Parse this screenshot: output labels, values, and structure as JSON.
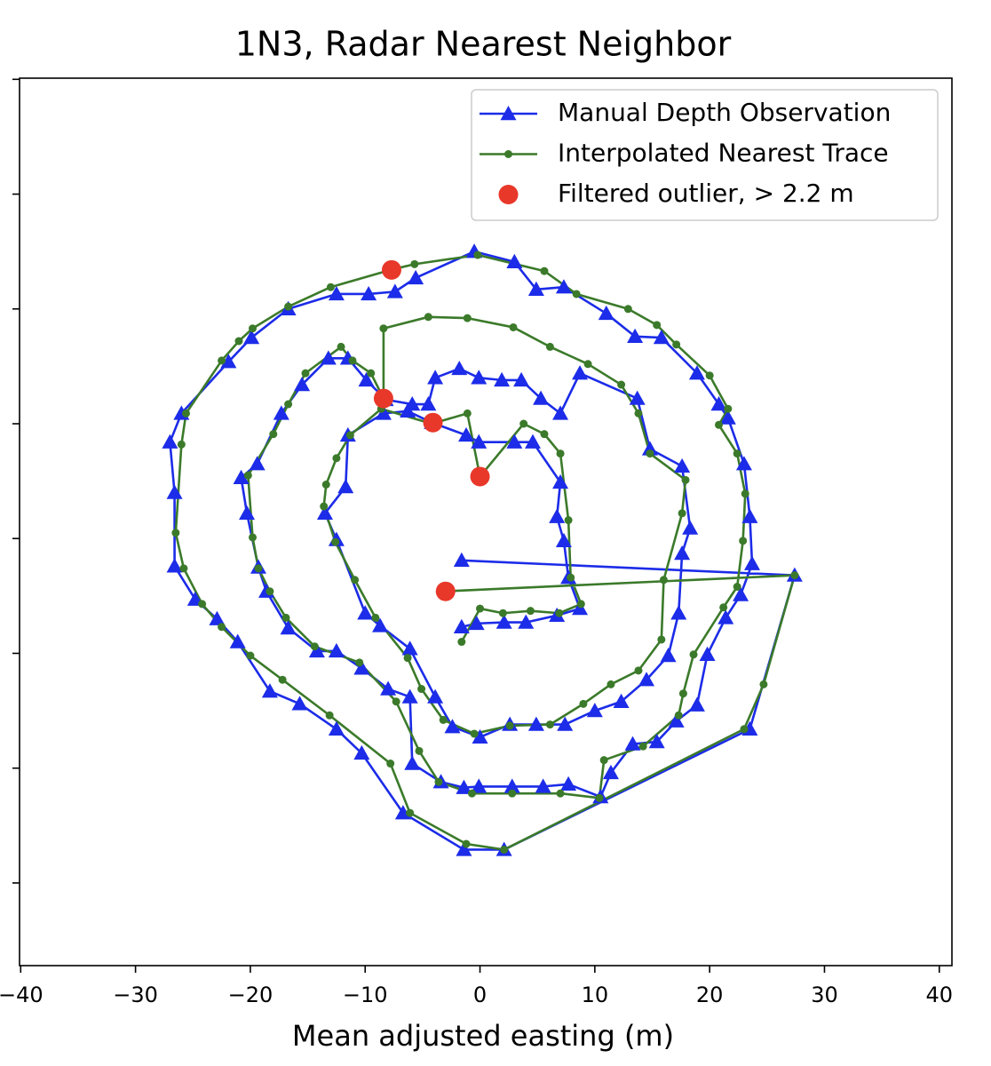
{
  "chart_data": {
    "type": "line",
    "title": "1N3, Radar Nearest Neighbor",
    "x_label": "Mean adjusted easting (m)",
    "legend": "upper right",
    "xlim": [
      -40.1,
      41.1
    ],
    "ylim": [
      -37.2,
      40.1
    ],
    "xticks": [
      {
        "value": -40,
        "label": "−40"
      },
      {
        "value": -30,
        "label": "−30"
      },
      {
        "value": -20,
        "label": "−20"
      },
      {
        "value": -10,
        "label": "−10"
      },
      0,
      10,
      20,
      30,
      40
    ],
    "yticks": [
      -30,
      -20,
      -10,
      0,
      10,
      20,
      30,
      40
    ],
    "series": [
      {
        "name": "Manual Depth Observation",
        "color": "#1c2ce8",
        "marker": "triangle",
        "line": true,
        "x": [
          -1.6,
          27.4,
          23.5,
          2.1,
          -1.4,
          -6.7,
          -10.3,
          -12.5,
          -15.7,
          -18.3,
          -21.1,
          -22.9,
          -24.8,
          -26.6,
          -26.6,
          -27.0,
          -26.0,
          -21.9,
          -19.9,
          -16.7,
          -12.5,
          -9.7,
          -7.4,
          -5.6,
          -0.5,
          3.0,
          4.9,
          7.3,
          11.0,
          13.5,
          15.8,
          18.9,
          20.8,
          21.6,
          23.0,
          23.5,
          23.7,
          22.7,
          21.4,
          19.8,
          18.9,
          17.1,
          15.4,
          13.3,
          11.4,
          10.5,
          7.7,
          5.5,
          2.8,
          -0.1,
          -1.4,
          -3.4,
          -5.9,
          -6.1,
          -8.0,
          -10.3,
          -12.5,
          -14.2,
          -16.7,
          -18.6,
          -19.3,
          -20.3,
          -20.8,
          -19.4,
          -17.3,
          -15.5,
          -13.2,
          -11.5,
          -9.9,
          -8.2,
          -5.9,
          -4.5,
          -3.9,
          -1.8,
          -0.1,
          1.9,
          3.6,
          5.3,
          7.0,
          8.7,
          13.7,
          14.8,
          17.6,
          18.3,
          17.6,
          17.3,
          16.4,
          14.5,
          12.3,
          10.0,
          7.4,
          4.9,
          2.6,
          0,
          -2.4,
          -3.9,
          -6.1,
          -8.7,
          -10.0,
          -12.5,
          -13.5,
          -11.7,
          -11.5,
          -8.4,
          -6.3,
          -4.2,
          -1.2,
          -0.1,
          3.0,
          4.6,
          7.0,
          6.7,
          7.3,
          7.7,
          8.7,
          6.7,
          4.0,
          2.1,
          -0.3,
          -1.6
        ],
        "values": [
          -1.9,
          -3.2,
          -16.6,
          -27.1,
          -27.1,
          -23.9,
          -18.7,
          -16.6,
          -14.4,
          -13.3,
          -9.0,
          -7.0,
          -5.3,
          -2.4,
          4.0,
          8.4,
          10.9,
          15.4,
          17.5,
          20.0,
          21.3,
          21.3,
          21.5,
          22.7,
          25.0,
          24.1,
          21.7,
          21.9,
          19.6,
          17.6,
          17.5,
          14.4,
          11.7,
          10.5,
          6.5,
          1.9,
          -2.2,
          -4.9,
          -6.9,
          -10.1,
          -14.5,
          -15.9,
          -17.7,
          -17.9,
          -20.4,
          -22.5,
          -21.4,
          -21.6,
          -21.6,
          -21.6,
          -21.7,
          -21.2,
          -19.6,
          -13.8,
          -13.1,
          -11.3,
          -9.8,
          -9.8,
          -7.8,
          -4.6,
          -2.5,
          2.2,
          5.3,
          6.5,
          10.9,
          13.4,
          15.7,
          15.7,
          13.8,
          12.1,
          11.7,
          11.7,
          14.0,
          14.8,
          14.0,
          13.8,
          13.8,
          12.2,
          10.9,
          14.4,
          12.2,
          7.8,
          6.3,
          0.9,
          -1.3,
          -6.5,
          -10.2,
          -12.3,
          -14.2,
          -15.0,
          -16.2,
          -16.2,
          -16.2,
          -17.3,
          -16.4,
          -13.8,
          -9.6,
          -7.6,
          -6.5,
          -0.1,
          2.2,
          4.5,
          9.0,
          10.9,
          11.1,
          10.1,
          9.0,
          8.4,
          8.4,
          8.4,
          4.9,
          1.9,
          -0.2,
          -3.4,
          -6.1,
          -6.7,
          -7.3,
          -7.3,
          -7.4,
          -7.7
        ]
      },
      {
        "name": "Interpolated Nearest Trace",
        "color": "#3b7a2a",
        "marker": "circle",
        "line": true,
        "x": [
          -3.2,
          27.4,
          24.7,
          23.0,
          2.1,
          -1.2,
          -6.1,
          -7.8,
          -13.1,
          -17.2,
          -20.0,
          -22.5,
          -24.2,
          -25.8,
          -26.5,
          -26.0,
          -25.6,
          -22.5,
          -21.0,
          -19.8,
          -16.7,
          -13.0,
          -7.8,
          -5.7,
          -0.2,
          5.6,
          8.4,
          12.9,
          15.4,
          17.1,
          20.0,
          21.6,
          20.8,
          22.4,
          23.1,
          22.9,
          22.4,
          21.2,
          18.6,
          17.7,
          17.3,
          14.2,
          10.8,
          10.4,
          7.0,
          2.8,
          -0.7,
          -3.6,
          -5.3,
          -7.3,
          -10.5,
          -14.4,
          -16.9,
          -18.3,
          -19.3,
          -19.8,
          -20.2,
          -18.0,
          -16.7,
          -15.2,
          -12.1,
          -11.1,
          -9.5,
          -8.4,
          -8.4,
          -4.5,
          -1.1,
          2.9,
          6.1,
          9.4,
          12.3,
          13.8,
          14.8,
          17.9,
          17.6,
          16.0,
          15.8,
          13.8,
          11.4,
          9.0,
          6.1,
          2.6,
          -0.5,
          -3.2,
          -5.1,
          -6.3,
          -9.1,
          -10.9,
          -12.6,
          -13.6,
          -13.4,
          -12.5,
          -11.3,
          -8.6,
          -4.2,
          -1.1,
          0,
          3.8,
          5.6,
          7.0,
          7.7,
          7.9,
          8.8,
          6.9,
          4.4,
          2.0,
          0,
          -1.6
        ],
        "values": [
          -4.6,
          -3.2,
          -12.7,
          -16.6,
          -27.1,
          -26.6,
          -23.9,
          -19.6,
          -15.4,
          -12.3,
          -10.2,
          -7.7,
          -5.7,
          -2.6,
          0.5,
          8.2,
          10.9,
          15.5,
          17.2,
          18.3,
          20.2,
          21.9,
          23.4,
          23.9,
          24.7,
          23.3,
          21.3,
          20.0,
          18.6,
          16.9,
          14.2,
          11.3,
          9.9,
          7.4,
          3.9,
          -0.2,
          -4.2,
          -6.0,
          -10.1,
          -13.5,
          -15.4,
          -18.1,
          -19.3,
          -22.6,
          -22.2,
          -22.2,
          -22.2,
          -21.2,
          -18.5,
          -14.2,
          -10.8,
          -9.4,
          -6.9,
          -4.6,
          -2.6,
          0.1,
          5.5,
          9.1,
          11.7,
          14.4,
          16.7,
          15.5,
          14.4,
          12.2,
          18.3,
          19.3,
          19.2,
          18.4,
          16.7,
          15.2,
          13.4,
          10.9,
          7.4,
          5.1,
          2.2,
          -3.6,
          -8.8,
          -11.5,
          -12.7,
          -14.4,
          -16.2,
          -16.3,
          -17.0,
          -15.8,
          -13.1,
          -10.4,
          -6.9,
          -3.6,
          -0.3,
          2.8,
          4.7,
          7.0,
          9.0,
          11.3,
          10.0,
          10.9,
          5.4,
          10.0,
          9.1,
          7.4,
          1.6,
          -3.4,
          -5.7,
          -6.5,
          -6.3,
          -6.5,
          -6.1,
          -9.0
        ]
      },
      {
        "name": "Filtered outlier, > 2.2 m",
        "color": "#e8382a",
        "marker": "big-circle",
        "line": false,
        "x": [
          -7.7,
          -8.4,
          -4.1,
          0,
          -3.0
        ],
        "values": [
          23.4,
          12.2,
          10.1,
          5.4,
          -4.6
        ]
      }
    ]
  }
}
